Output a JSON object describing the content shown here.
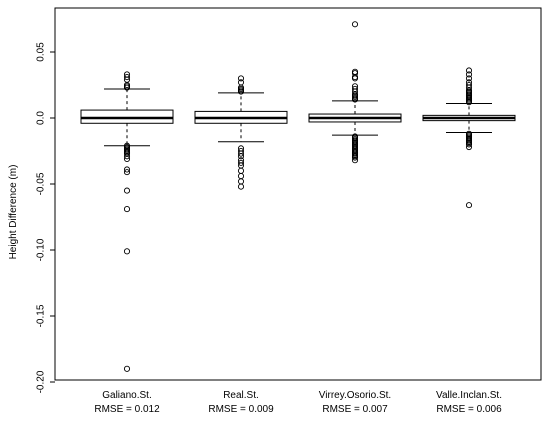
{
  "chart_data": {
    "type": "box",
    "title": "",
    "xlabel": "",
    "ylabel": "Height Difference (m)",
    "ylim": [
      -0.2,
      0.07
    ],
    "yticks": [
      0.05,
      0.0,
      -0.05,
      -0.1,
      -0.15,
      -0.2
    ],
    "ytick_labels": [
      "0.05",
      "0.0",
      "-0.05",
      "-0.10",
      "-0.15",
      "-0.20"
    ],
    "grid": false,
    "categories": [
      {
        "name": "Galiano.St.",
        "rmse_label": "RMSE = 0.012"
      },
      {
        "name": "Real.St.",
        "rmse_label": "RMSE = 0.009"
      },
      {
        "name": "Virrey.Osorio.St.",
        "rmse_label": "RMSE = 0.007"
      },
      {
        "name": "Valle.Inclan.St.",
        "rmse_label": "RMSE = 0.006"
      }
    ],
    "boxes": [
      {
        "q1": -0.004,
        "median": 0.0,
        "q3": 0.006,
        "whisker_low": -0.021,
        "whisker_high": 0.022,
        "outliers": [
          0.033,
          0.031,
          0.029,
          0.025,
          0.024,
          0.023,
          -0.021,
          -0.022,
          -0.023,
          -0.024,
          -0.025,
          -0.026,
          -0.027,
          -0.029,
          -0.031,
          -0.039,
          -0.041,
          -0.055,
          -0.069,
          -0.101,
          -0.19
        ]
      },
      {
        "q1": -0.004,
        "median": 0.0,
        "q3": 0.005,
        "whisker_low": -0.018,
        "whisker_high": 0.019,
        "outliers": [
          0.03,
          0.027,
          0.023,
          0.022,
          0.021,
          0.02,
          -0.023,
          -0.025,
          -0.027,
          -0.029,
          -0.032,
          -0.034,
          -0.036,
          -0.04,
          -0.044,
          -0.048,
          -0.052
        ]
      },
      {
        "q1": -0.003,
        "median": 0.0,
        "q3": 0.003,
        "whisker_low": -0.013,
        "whisker_high": 0.013,
        "outliers": [
          0.071,
          0.035,
          0.034,
          0.031,
          0.03,
          0.024,
          0.022,
          0.02,
          0.018,
          0.017,
          0.016,
          0.015,
          0.014,
          -0.014,
          -0.015,
          -0.016,
          -0.017,
          -0.018,
          -0.019,
          -0.02,
          -0.021,
          -0.022,
          -0.023,
          -0.024,
          -0.025,
          -0.026,
          -0.027,
          -0.028,
          -0.029,
          -0.03,
          -0.032
        ]
      },
      {
        "q1": -0.002,
        "median": 0.0,
        "q3": 0.002,
        "whisker_low": -0.011,
        "whisker_high": 0.011,
        "outliers": [
          0.036,
          0.033,
          0.03,
          0.027,
          0.025,
          0.023,
          0.021,
          0.02,
          0.019,
          0.018,
          0.017,
          0.016,
          0.015,
          0.014,
          0.013,
          0.012,
          -0.012,
          -0.013,
          -0.014,
          -0.015,
          -0.016,
          -0.017,
          -0.018,
          -0.019,
          -0.02,
          -0.022,
          -0.066
        ]
      }
    ]
  }
}
